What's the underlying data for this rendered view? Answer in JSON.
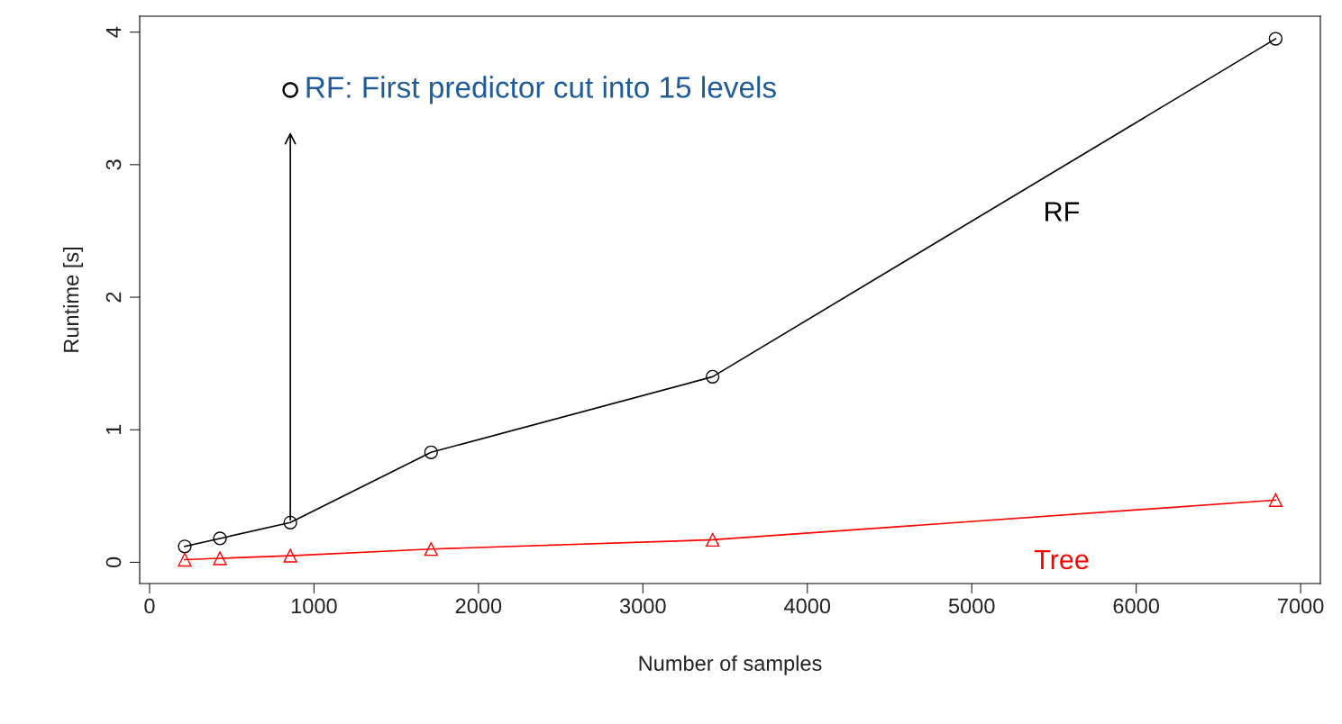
{
  "chart_data": {
    "type": "line",
    "xlabel": "Number of samples",
    "ylabel": "Runtime [s]",
    "x": [
      214,
      428,
      856,
      1712,
      3424,
      6848
    ],
    "series": [
      {
        "name": "RF",
        "color": "#000000",
        "marker": "circle",
        "values": [
          0.12,
          0.18,
          0.3,
          0.83,
          1.4,
          3.95
        ]
      },
      {
        "name": "Tree",
        "color": "#ff0000",
        "marker": "triangle",
        "values": [
          0.02,
          0.03,
          0.05,
          0.1,
          0.17,
          0.47
        ]
      }
    ],
    "annotations": [
      {
        "text": "RF: First predictor cut into 15 levels",
        "x": 856,
        "y": 0.3
      }
    ],
    "xlim": [
      -60,
      7120
    ],
    "ylim": [
      -0.16,
      4.12
    ],
    "xticks": [
      0,
      1000,
      2000,
      3000,
      4000,
      5000,
      6000,
      7000
    ],
    "yticks": [
      0,
      1,
      2,
      3,
      4
    ],
    "grid": false,
    "legend": false,
    "line_style": "solid"
  }
}
